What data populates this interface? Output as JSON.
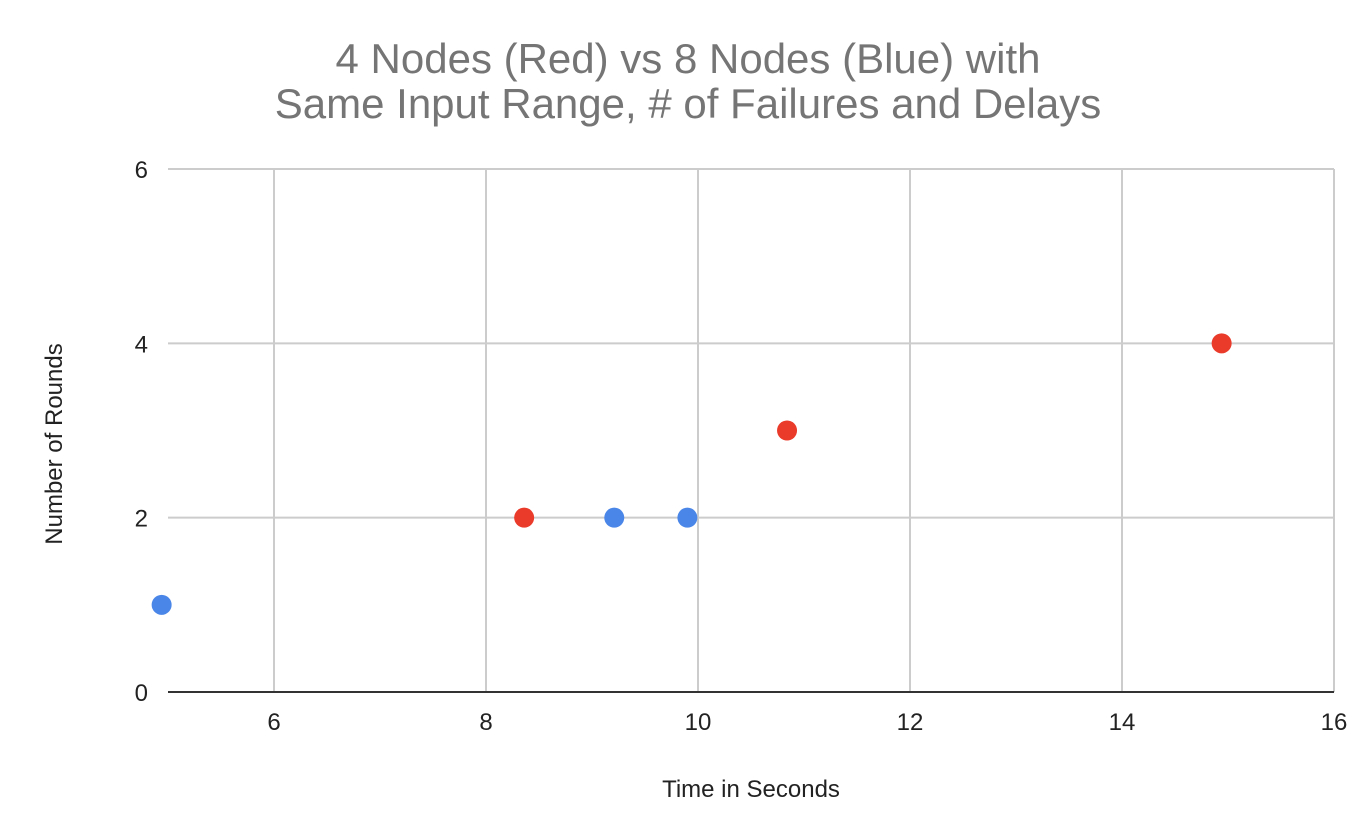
{
  "chart_data": {
    "type": "scatter",
    "title": "4 Nodes (Red) vs 8 Nodes (Blue) with",
    "subtitle": "Same Input Range, # of Failures and Delays",
    "xlabel": "Time in Seconds",
    "ylabel": "Number of Rounds",
    "xlim": [
      5,
      16
    ],
    "ylim": [
      0,
      6
    ],
    "x_ticks": [
      "6",
      "8",
      "10",
      "12",
      "14",
      "16"
    ],
    "y_ticks": [
      "0",
      "2",
      "4",
      "6"
    ],
    "grid": true,
    "series": [
      {
        "color": "#ea3a2a",
        "points": [
          {
            "x": 8.36,
            "y": 2
          },
          {
            "x": 10.84,
            "y": 3
          },
          {
            "x": 14.94,
            "y": 4
          }
        ]
      },
      {
        "color": "#4a86e8",
        "points": [
          {
            "x": 4.94,
            "y": 1
          },
          {
            "x": 9.21,
            "y": 2
          },
          {
            "x": 9.9,
            "y": 2
          }
        ]
      }
    ]
  }
}
